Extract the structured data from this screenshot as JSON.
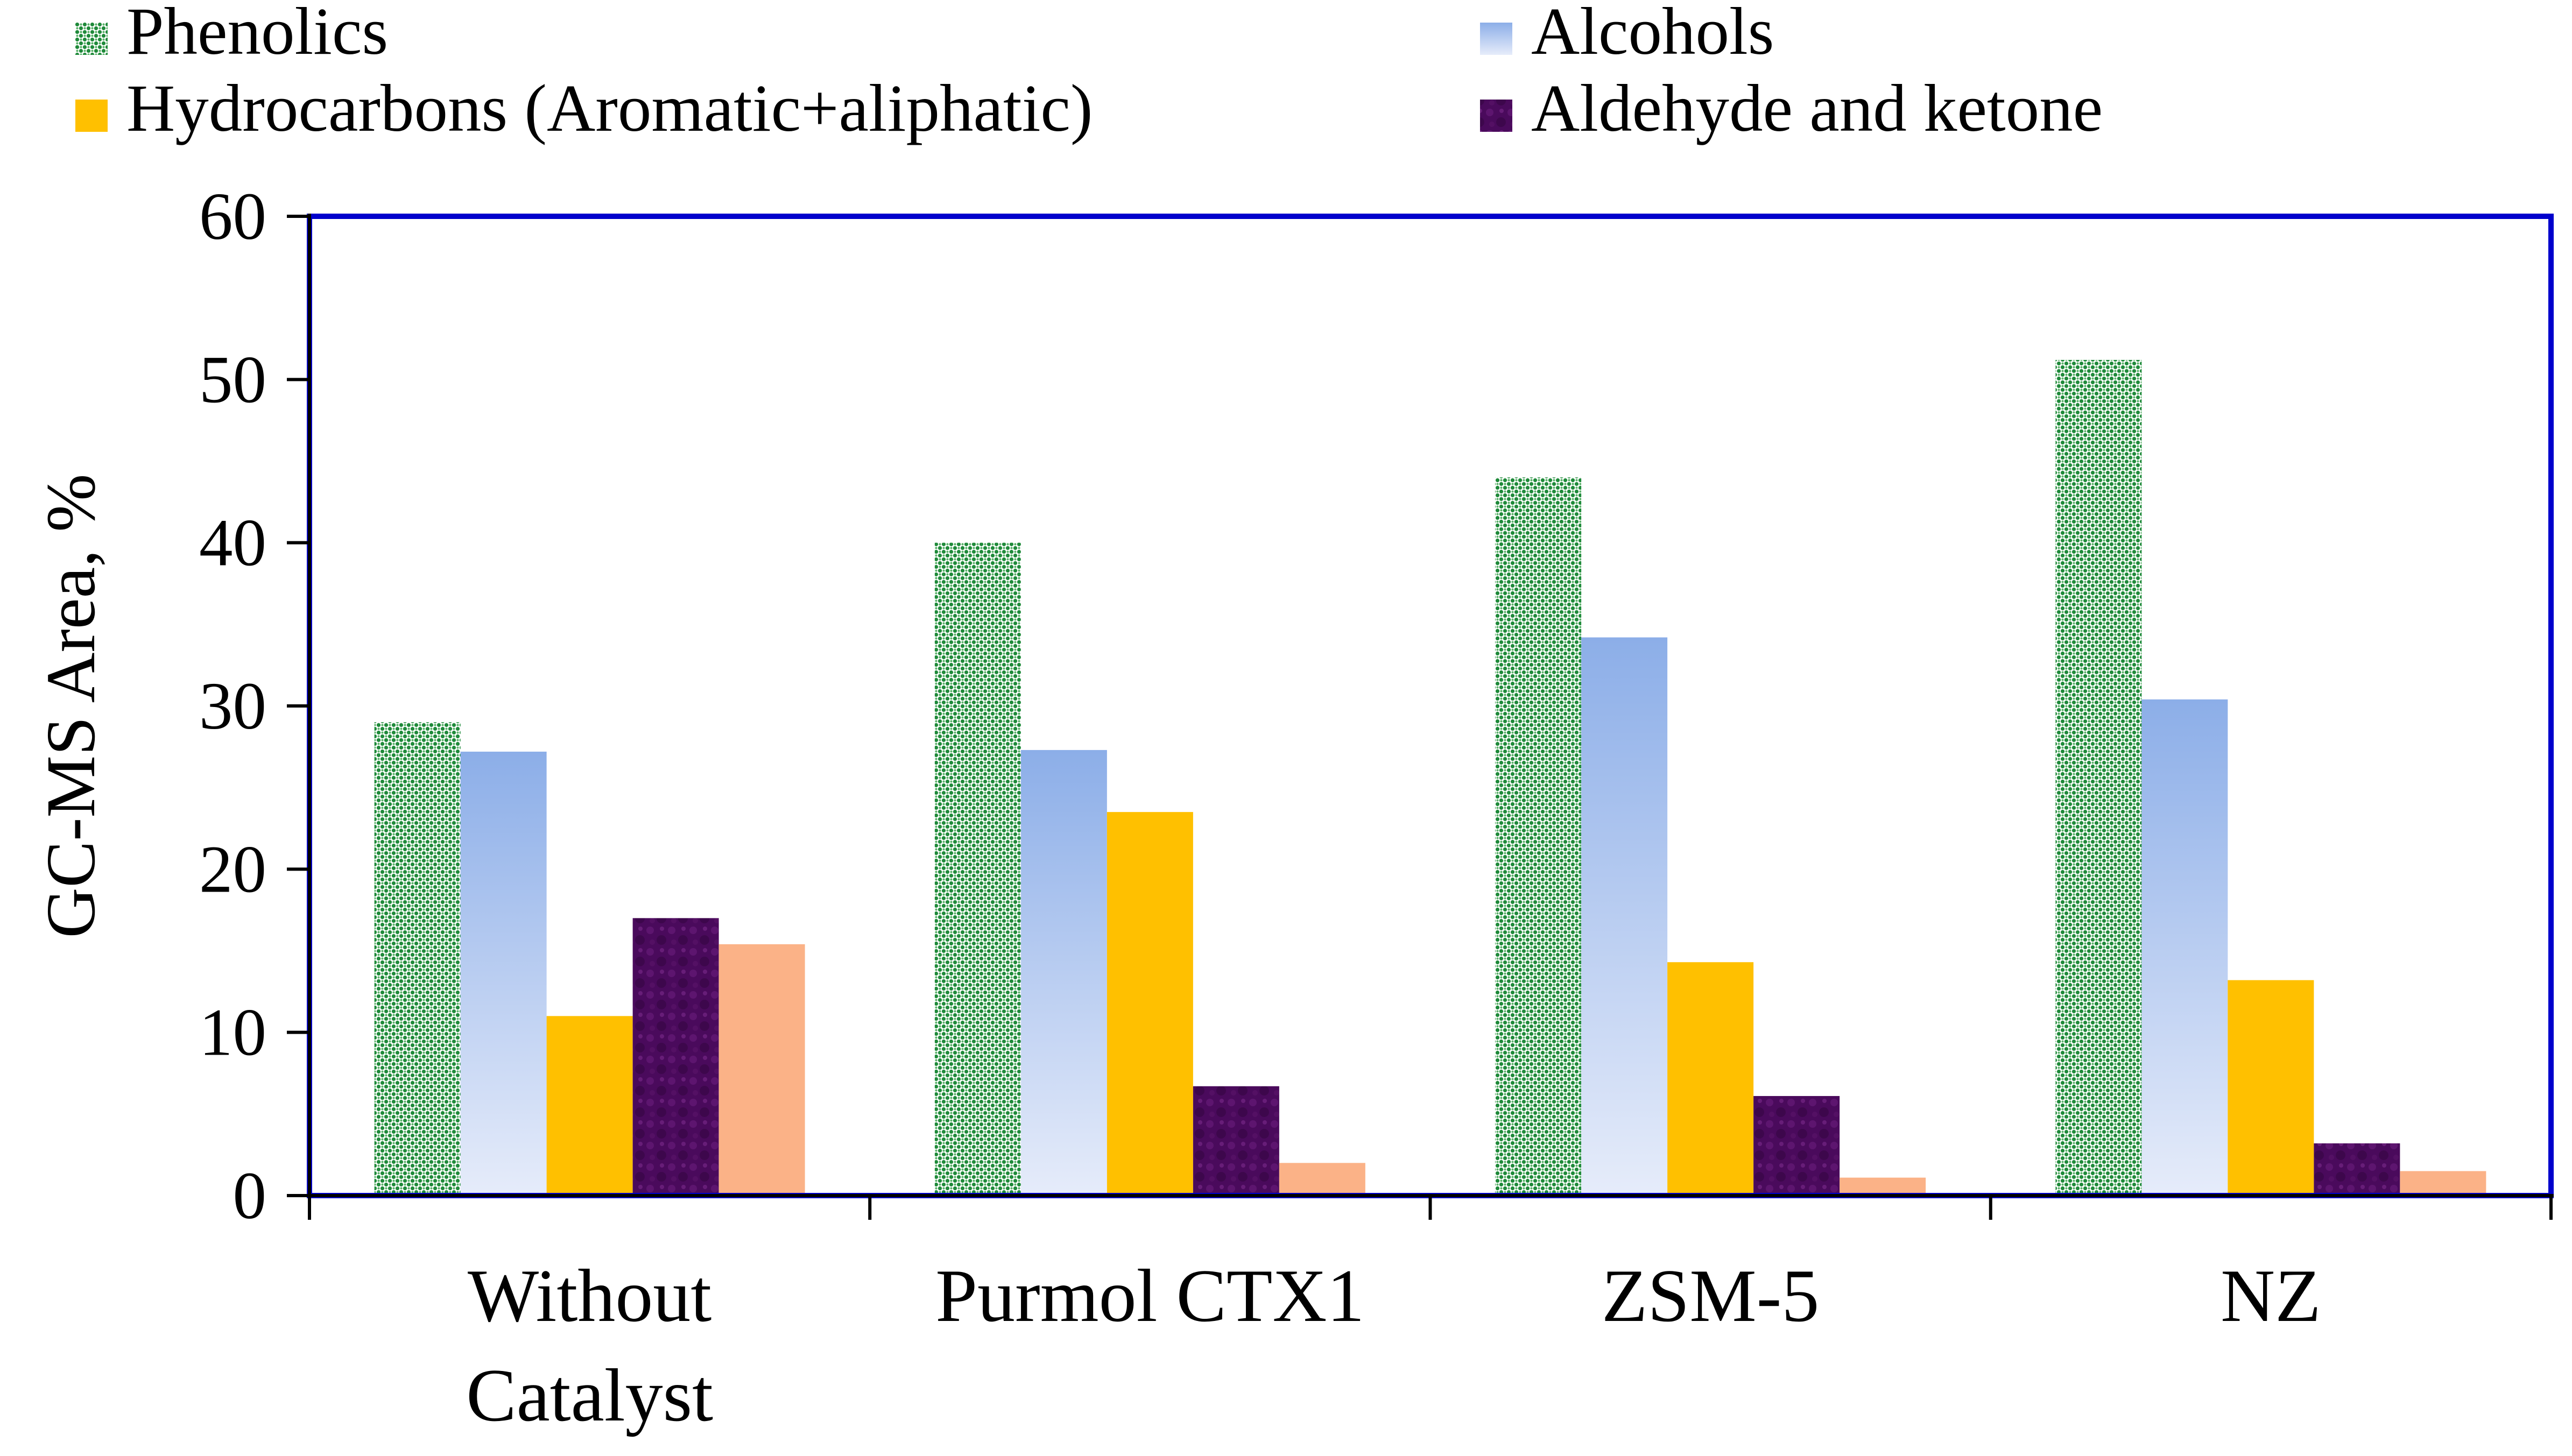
{
  "chart_data": {
    "type": "bar",
    "title": "",
    "xlabel": "",
    "ylabel": "GC-MS Area, %",
    "ylim": [
      0,
      60
    ],
    "yticks": [
      0,
      10,
      20,
      30,
      40,
      50,
      60
    ],
    "grid": false,
    "legend_position": "top",
    "categories": [
      [
        "Without",
        "Catalyst"
      ],
      [
        "Purmol CTX1"
      ],
      [
        "ZSM-5"
      ],
      [
        "NZ"
      ]
    ],
    "series": [
      {
        "name": "Phenolics",
        "values": [
          29.0,
          40.0,
          44.0,
          51.2
        ],
        "color": "#1f8a3a",
        "pattern": "dotted-green"
      },
      {
        "name": "Alcohols",
        "values": [
          27.2,
          27.3,
          34.2,
          30.4
        ],
        "color": "#8aaee8",
        "pattern": "gradient-blue"
      },
      {
        "name": "Hydrocarbons (Aromatic+aliphatic)",
        "values": [
          11.0,
          23.5,
          14.3,
          13.2
        ],
        "color": "#ffc000"
      },
      {
        "name": "Aldehyde and ketone",
        "values": [
          17.0,
          6.7,
          6.1,
          3.2
        ],
        "color": "#4b0a5e",
        "pattern": "textured-purple"
      },
      {
        "name": "",
        "values": [
          15.4,
          2.0,
          1.1,
          1.5
        ],
        "color": "#fbb287"
      }
    ],
    "plot_frame_color": "#0000cc"
  }
}
